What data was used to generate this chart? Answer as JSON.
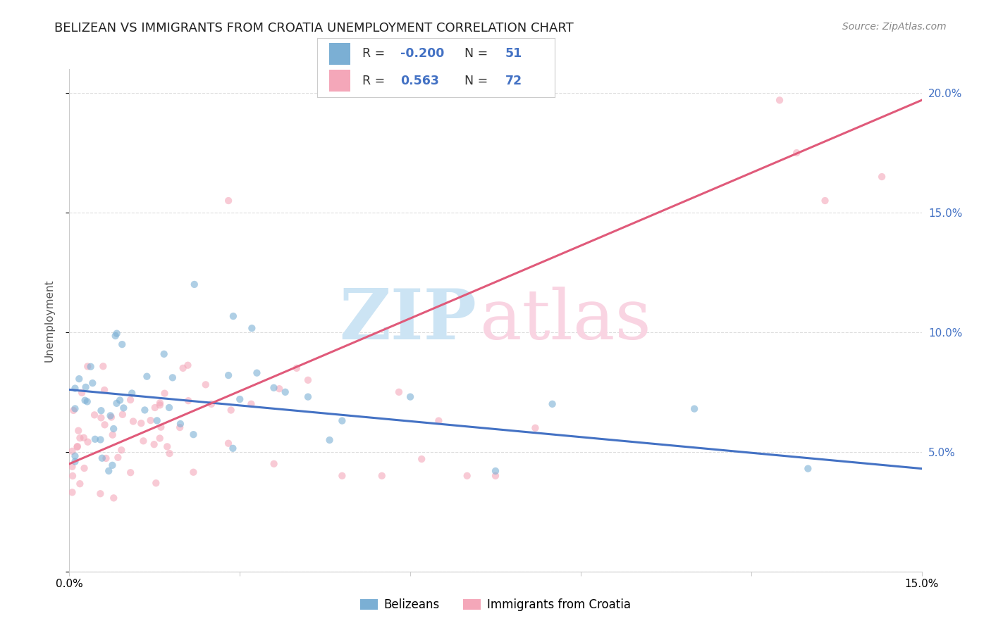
{
  "title": "BELIZEAN VS IMMIGRANTS FROM CROATIA UNEMPLOYMENT CORRELATION CHART",
  "source": "Source: ZipAtlas.com",
  "ylabel": "Unemployment",
  "xlim": [
    0.0,
    0.15
  ],
  "ylim": [
    0.0,
    0.21
  ],
  "blue_color": "#7bafd4",
  "pink_color": "#f4a7b9",
  "blue_line_color": "#4472c4",
  "pink_line_color": "#e05a7a",
  "blue_line_x": [
    0.0,
    0.15
  ],
  "blue_line_y": [
    0.076,
    0.043
  ],
  "pink_line_x": [
    0.0,
    0.15
  ],
  "pink_line_y": [
    0.045,
    0.197
  ],
  "scatter_alpha": 0.6,
  "scatter_size": 55,
  "grid_color": "#dddddd",
  "background_color": "#ffffff",
  "title_fontsize": 13,
  "axis_label_fontsize": 11,
  "tick_fontsize": 11,
  "watermark_zip_color": "#cce4f4",
  "watermark_atlas_color": "#f9d4e2",
  "blue_R": "-0.200",
  "blue_N": "51",
  "pink_R": "0.563",
  "pink_N": "72"
}
